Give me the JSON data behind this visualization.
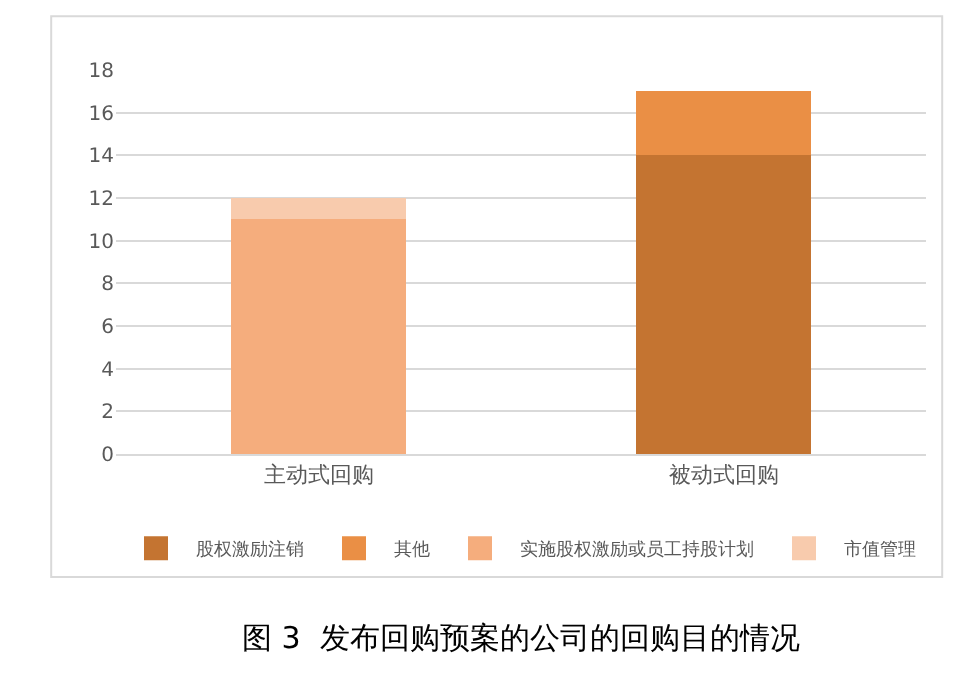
{
  "chart_data": {
    "type": "bar",
    "stacked": true,
    "categories": [
      "主动式回购",
      "被动式回购"
    ],
    "series": [
      {
        "name": "股权激励注销",
        "color": "#c47431",
        "values": [
          null,
          14
        ]
      },
      {
        "name": "其他",
        "color": "#ea8f45",
        "values": [
          null,
          3
        ]
      },
      {
        "name": "实施股权激励或员工持股计划",
        "color": "#f5ad7d",
        "values": [
          11,
          null
        ]
      },
      {
        "name": "市值管理",
        "color": "#f8cbad",
        "values": [
          1,
          null
        ]
      }
    ],
    "ylim": [
      0,
      18
    ],
    "yticks": [
      0,
      2,
      4,
      6,
      8,
      10,
      12,
      14,
      16,
      18
    ],
    "grid": "y",
    "legend": "bottom",
    "annotations": [
      "图 3  发布回购预案的公司的回购目的情况"
    ]
  }
}
